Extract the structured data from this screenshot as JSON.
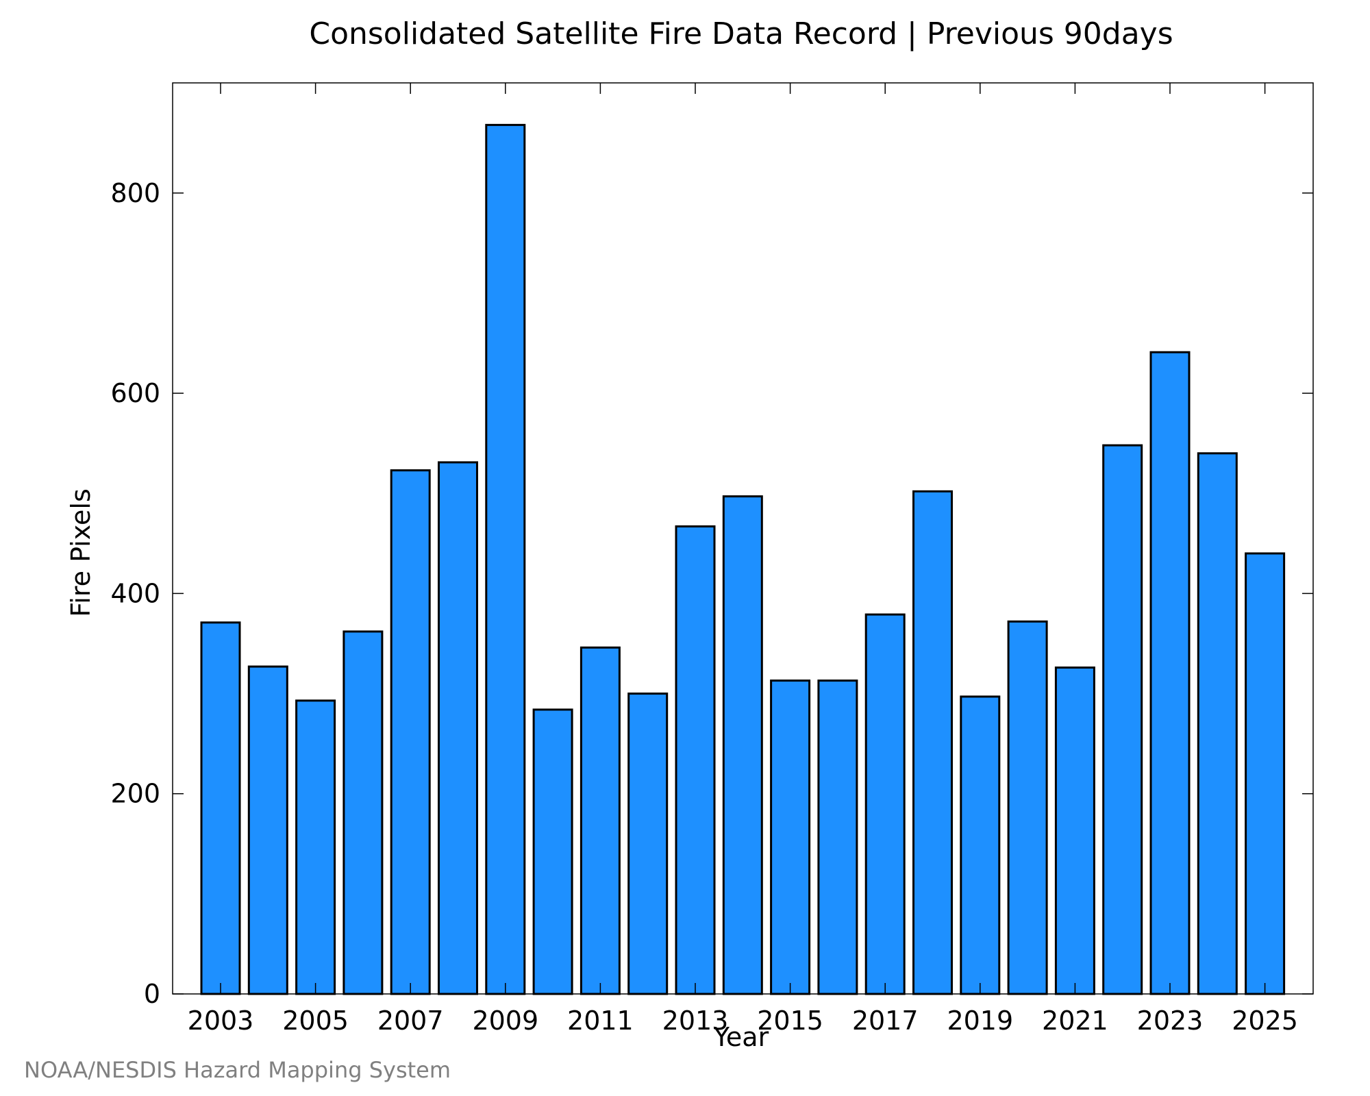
{
  "chart_data": {
    "type": "bar",
    "title": "Consolidated Satellite Fire Data Record | Previous 90days",
    "xlabel": "Year",
    "ylabel": "Fire Pixels",
    "categories": [
      "2003",
      "2004",
      "2005",
      "2006",
      "2007",
      "2008",
      "2009",
      "2010",
      "2011",
      "2012",
      "2013",
      "2014",
      "2015",
      "2016",
      "2017",
      "2018",
      "2019",
      "2020",
      "2021",
      "2022",
      "2023",
      "2024",
      "2025"
    ],
    "values": [
      371,
      327,
      293,
      362,
      523,
      531,
      868,
      284,
      346,
      300,
      467,
      497,
      313,
      313,
      379,
      502,
      297,
      372,
      326,
      548,
      641,
      540,
      440
    ],
    "xticks": [
      "2003",
      "2005",
      "2007",
      "2009",
      "2011",
      "2013",
      "2015",
      "2017",
      "2019",
      "2021",
      "2023",
      "2025"
    ],
    "yticks": [
      0,
      200,
      400,
      600,
      800
    ],
    "ylim": [
      0,
      910
    ],
    "grid": false,
    "bar_color": "#1e90ff",
    "edge_color": "#000000"
  },
  "footer": {
    "credit": "NOAA/NESDIS Hazard Mapping System"
  }
}
